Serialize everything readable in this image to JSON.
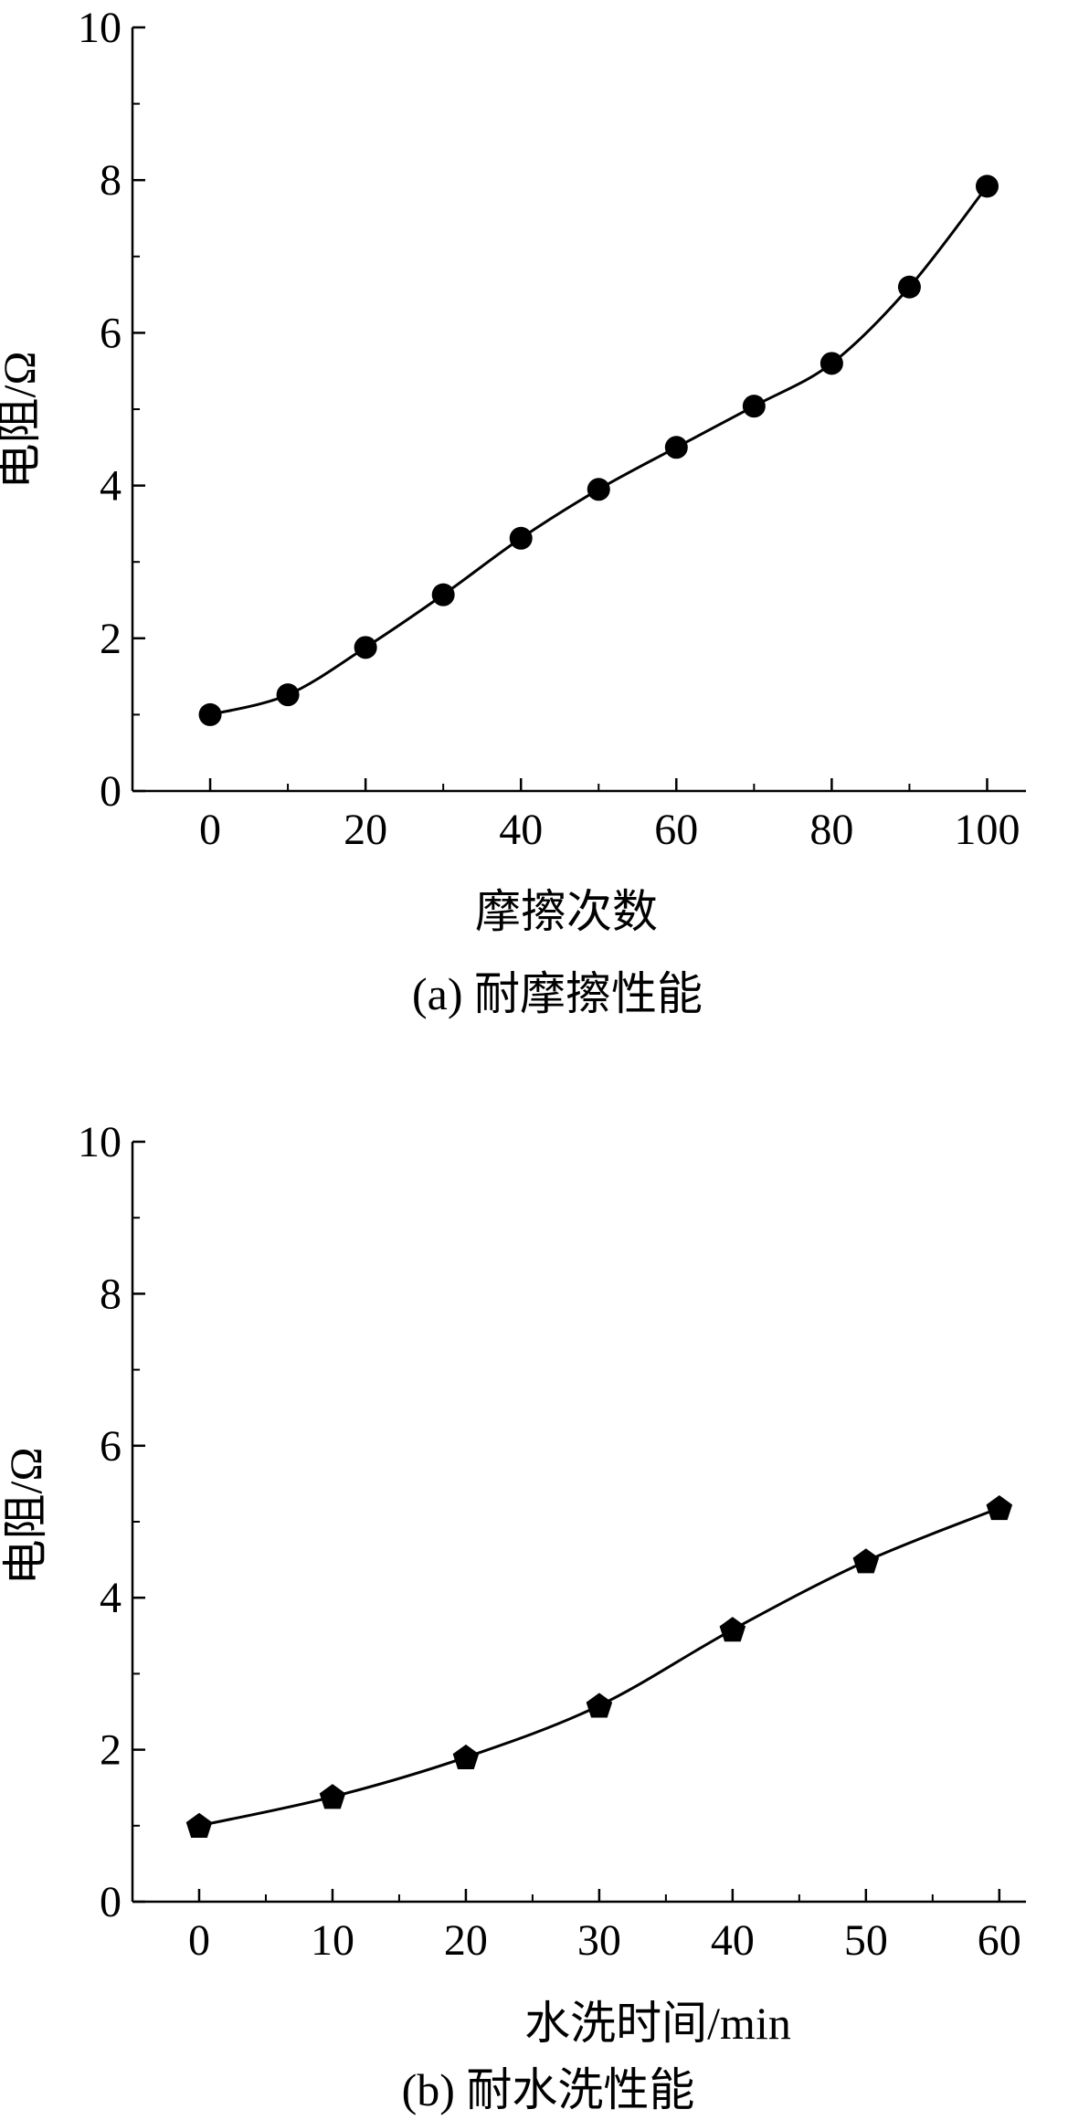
{
  "chart_data": [
    {
      "type": "line",
      "caption": "(a) 耐摩擦性能",
      "xlabel": "摩擦次数",
      "ylabel": "电阻/Ω",
      "xlim": [
        -10,
        105
      ],
      "ylim": [
        0,
        10
      ],
      "xticks": [
        0,
        20,
        40,
        60,
        80,
        100
      ],
      "yticks": [
        0,
        2,
        4,
        6,
        8,
        10
      ],
      "marker": "circle",
      "colors": {
        "line": "#000000",
        "marker": "#000000"
      },
      "series": [
        {
          "x": [
            0,
            10,
            20,
            30,
            40,
            50,
            60,
            70,
            80,
            90,
            100
          ],
          "values": [
            1.0,
            1.26,
            1.88,
            2.57,
            3.31,
            3.95,
            4.5,
            5.04,
            5.6,
            6.6,
            7.92
          ]
        }
      ]
    },
    {
      "type": "line",
      "caption": "(b) 耐水洗性能",
      "xlabel": "水洗时间/min",
      "ylabel": "电阻/Ω",
      "xlim": [
        -5,
        62
      ],
      "ylim": [
        0,
        10
      ],
      "xticks": [
        0,
        10,
        20,
        30,
        40,
        50,
        60
      ],
      "yticks": [
        0,
        2,
        4,
        6,
        8,
        10
      ],
      "marker": "pentagon",
      "colors": {
        "line": "#000000",
        "marker": "#000000"
      },
      "series": [
        {
          "x": [
            0,
            10,
            20,
            30,
            40,
            50,
            60
          ],
          "values": [
            1.0,
            1.38,
            1.9,
            2.58,
            3.58,
            4.48,
            5.18
          ]
        }
      ]
    }
  ]
}
